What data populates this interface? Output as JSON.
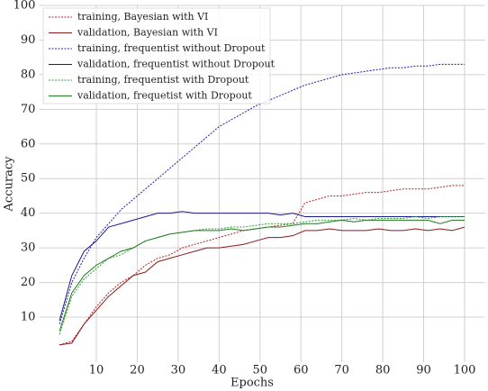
{
  "chart_data": {
    "type": "line",
    "x_label": "Epochs",
    "y_label": "Accuracy",
    "x": [
      1,
      4,
      7,
      10,
      13,
      16,
      19,
      22,
      25,
      28,
      31,
      34,
      37,
      40,
      43,
      46,
      49,
      52,
      55,
      58,
      61,
      64,
      67,
      70,
      73,
      76,
      79,
      82,
      85,
      88,
      91,
      94,
      97,
      100
    ],
    "series": [
      {
        "name": "training, Bayesian with VI",
        "color": "#b22222",
        "dash": true,
        "values": [
          2,
          3,
          8,
          13,
          17,
          20,
          22,
          25,
          27,
          28,
          30,
          31,
          32,
          33,
          34,
          35,
          35.5,
          36,
          36.5,
          37,
          43,
          44,
          45,
          45,
          45.5,
          46,
          46,
          46.5,
          47,
          47,
          47,
          47.5,
          48,
          48
        ]
      },
      {
        "name": "validation, Bayesian with VI",
        "color": "#8b1a1a",
        "dash": false,
        "values": [
          2,
          2.5,
          8,
          12,
          16,
          19,
          22,
          23,
          26,
          27,
          28,
          29,
          30,
          30,
          30.5,
          31,
          32,
          33,
          33,
          33.5,
          35,
          35,
          35.5,
          35,
          35,
          35,
          35.5,
          35,
          35,
          35.5,
          35,
          35.5,
          35,
          36
        ]
      },
      {
        "name": "training, frequentist without Dropout",
        "color": "#1f1fb4",
        "dash": true,
        "values": [
          8,
          20,
          27,
          33,
          37,
          41,
          44,
          47,
          50,
          53,
          56,
          59,
          62,
          65,
          67,
          69,
          71,
          72.5,
          74,
          75.5,
          77,
          78,
          79,
          80,
          80.5,
          81,
          81.5,
          82,
          82,
          82.5,
          82.5,
          83,
          83,
          83
        ]
      },
      {
        "name": "validation, frequentist without Dropout",
        "color": "#1a1a8c",
        "dash": false,
        "values": [
          9,
          22,
          29,
          32,
          36,
          37,
          38,
          39,
          40,
          40,
          40.5,
          40,
          40,
          40,
          40,
          40,
          40,
          40,
          39.5,
          40,
          39,
          39,
          39,
          39,
          39,
          39,
          39,
          39,
          39,
          39,
          39,
          39,
          39,
          39
        ]
      },
      {
        "name": "training, frequentist with Dropout",
        "color": "#2ca02c",
        "dash": true,
        "values": [
          5,
          16,
          21,
          24,
          27,
          28,
          30,
          32,
          33,
          34,
          34.5,
          35,
          35.5,
          35.5,
          36,
          36,
          36.5,
          37,
          37,
          37,
          37.5,
          38,
          38,
          38,
          38.5,
          38,
          38.5,
          38.5,
          38.5,
          39,
          38.5,
          39,
          39,
          39
        ]
      },
      {
        "name": "validation, frequetist with Dropout",
        "color": "#1e7a1e",
        "dash": false,
        "values": [
          6,
          17,
          22,
          25,
          27,
          29,
          30,
          32,
          33,
          34,
          34.5,
          35,
          35,
          35,
          35.5,
          35,
          35.5,
          36,
          36,
          36.5,
          37,
          37,
          37.5,
          38,
          37.5,
          38,
          38,
          38,
          38,
          38,
          38,
          37,
          38,
          38
        ]
      }
    ],
    "xlim": [
      -4,
      105
    ],
    "ylim": [
      -3,
      100
    ],
    "xticks": [
      10,
      20,
      30,
      40,
      50,
      60,
      70,
      80,
      90,
      100
    ],
    "yticks": [
      10,
      20,
      30,
      40,
      50,
      60,
      70,
      80,
      90,
      100
    ],
    "grid": true,
    "legend": "upper-left"
  }
}
